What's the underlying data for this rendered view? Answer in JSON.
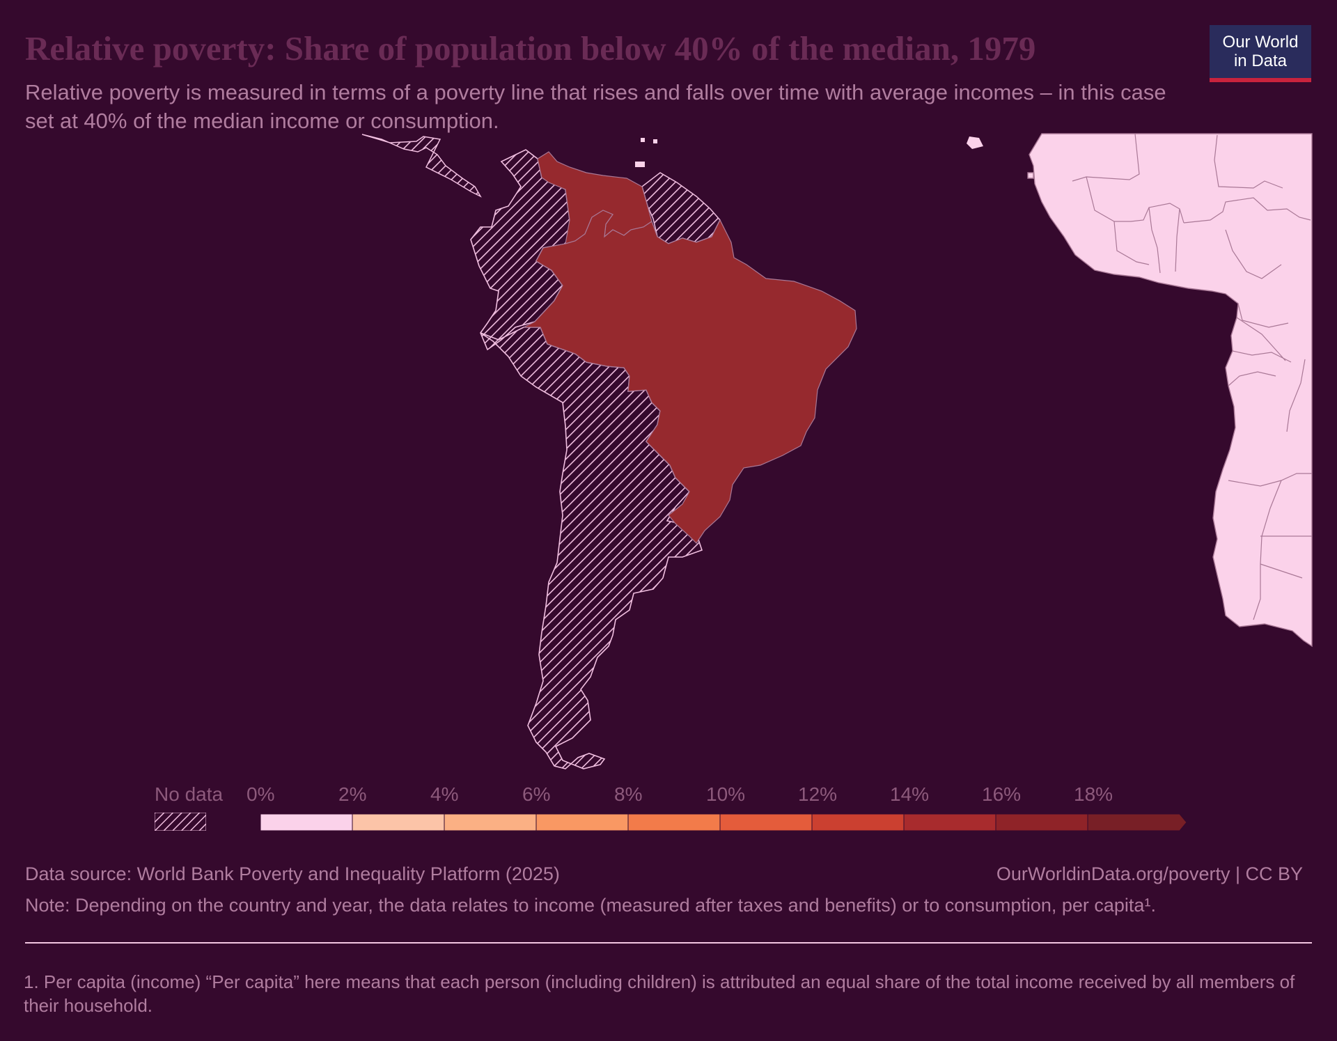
{
  "header": {
    "title": "Relative poverty: Share of population below 40% of the median, 1979",
    "subtitle": "Relative poverty is measured in terms of a poverty line that rises and falls over time with average incomes – in this case set at 40% of the median income or consumption."
  },
  "logo": {
    "line1": "Our World",
    "line2": "in Data"
  },
  "legend": {
    "no_data_label": "No data",
    "ticks": [
      "0%",
      "2%",
      "4%",
      "6%",
      "8%",
      "10%",
      "12%",
      "14%",
      "16%",
      "18%"
    ],
    "bins": [
      {
        "from": 0,
        "to": 2,
        "color": "#fbd2ea"
      },
      {
        "from": 2,
        "to": 4,
        "color": "#fcc4a8"
      },
      {
        "from": 4,
        "to": 6,
        "color": "#fbb084"
      },
      {
        "from": 6,
        "to": 8,
        "color": "#f99863"
      },
      {
        "from": 8,
        "to": 10,
        "color": "#f27b4a"
      },
      {
        "from": 10,
        "to": 12,
        "color": "#e45c3b"
      },
      {
        "from": 12,
        "to": 14,
        "color": "#cb4030"
      },
      {
        "from": 14,
        "to": 16,
        "color": "#a82b2d"
      },
      {
        "from": 16,
        "to": 18,
        "color": "#8f2328"
      },
      {
        "from": 18,
        "to": null,
        "color": "#781f26"
      }
    ]
  },
  "map": {
    "year": 1979,
    "colors": {
      "background": "#35092d",
      "land_no_data": "#fbd2ea",
      "hatch_stroke": "#f1bfe0",
      "border": "#a97896",
      "brazil_venezuela": "#96292e"
    },
    "countries_with_data": [
      {
        "name": "Brazil",
        "color": "#96292e"
      },
      {
        "name": "Venezuela",
        "color": "#96292e"
      }
    ]
  },
  "footer": {
    "source": "Data source: World Bank Poverty and Inequality Platform (2025)",
    "url": "OurWorldinData.org/poverty | CC BY",
    "note": "Note: Depending on the country and year, the data relates to income (measured after taxes and benefits) or to consumption, per capita¹.",
    "footnote": "1. Per capita (income) “Per capita” here means that each person (including children) is attributed an equal share of the total income received by all members of their household."
  }
}
